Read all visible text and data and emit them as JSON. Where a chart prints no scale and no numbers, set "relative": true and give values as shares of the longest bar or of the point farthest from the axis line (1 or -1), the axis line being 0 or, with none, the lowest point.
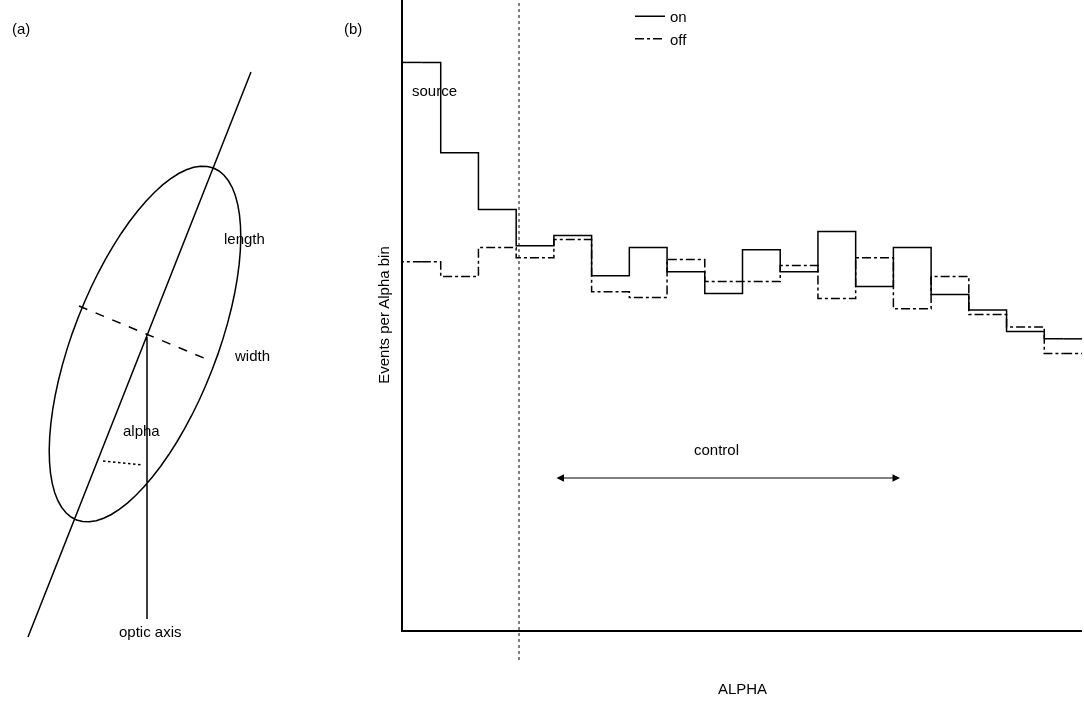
{
  "chart_data": [
    {
      "type": "other",
      "title": "(a)",
      "annotations": [
        "length",
        "width",
        "alpha",
        "optic axis"
      ]
    },
    {
      "type": "step",
      "title": "(b)",
      "relative": true,
      "xlabel": "ALPHA",
      "ylabel": "Events per Alpha bin",
      "categories": [
        null,
        null,
        null,
        null,
        null,
        null,
        null,
        null,
        null,
        null,
        null,
        null,
        null,
        null,
        null,
        null,
        null,
        null
      ],
      "series": [
        {
          "name": "on",
          "color": "#000000",
          "line_style": "solid",
          "values": [
            1.0,
            0.841,
            0.741,
            0.677,
            0.695,
            0.624,
            0.674,
            0.631,
            0.593,
            0.67,
            0.631,
            0.702,
            0.605,
            0.674,
            0.591,
            0.564,
            0.526,
            0.513
          ]
        },
        {
          "name": "off",
          "color": "#000000",
          "line_style": "dashdot",
          "values": [
            0.649,
            0.623,
            0.674,
            0.656,
            0.688,
            0.596,
            0.586,
            0.653,
            0.614,
            0.614,
            0.642,
            0.584,
            0.656,
            0.566,
            0.623,
            0.556,
            0.534,
            0.487
          ]
        }
      ],
      "annotations": [
        "source",
        "control"
      ],
      "legend": "top",
      "marker": "none"
    }
  ]
}
